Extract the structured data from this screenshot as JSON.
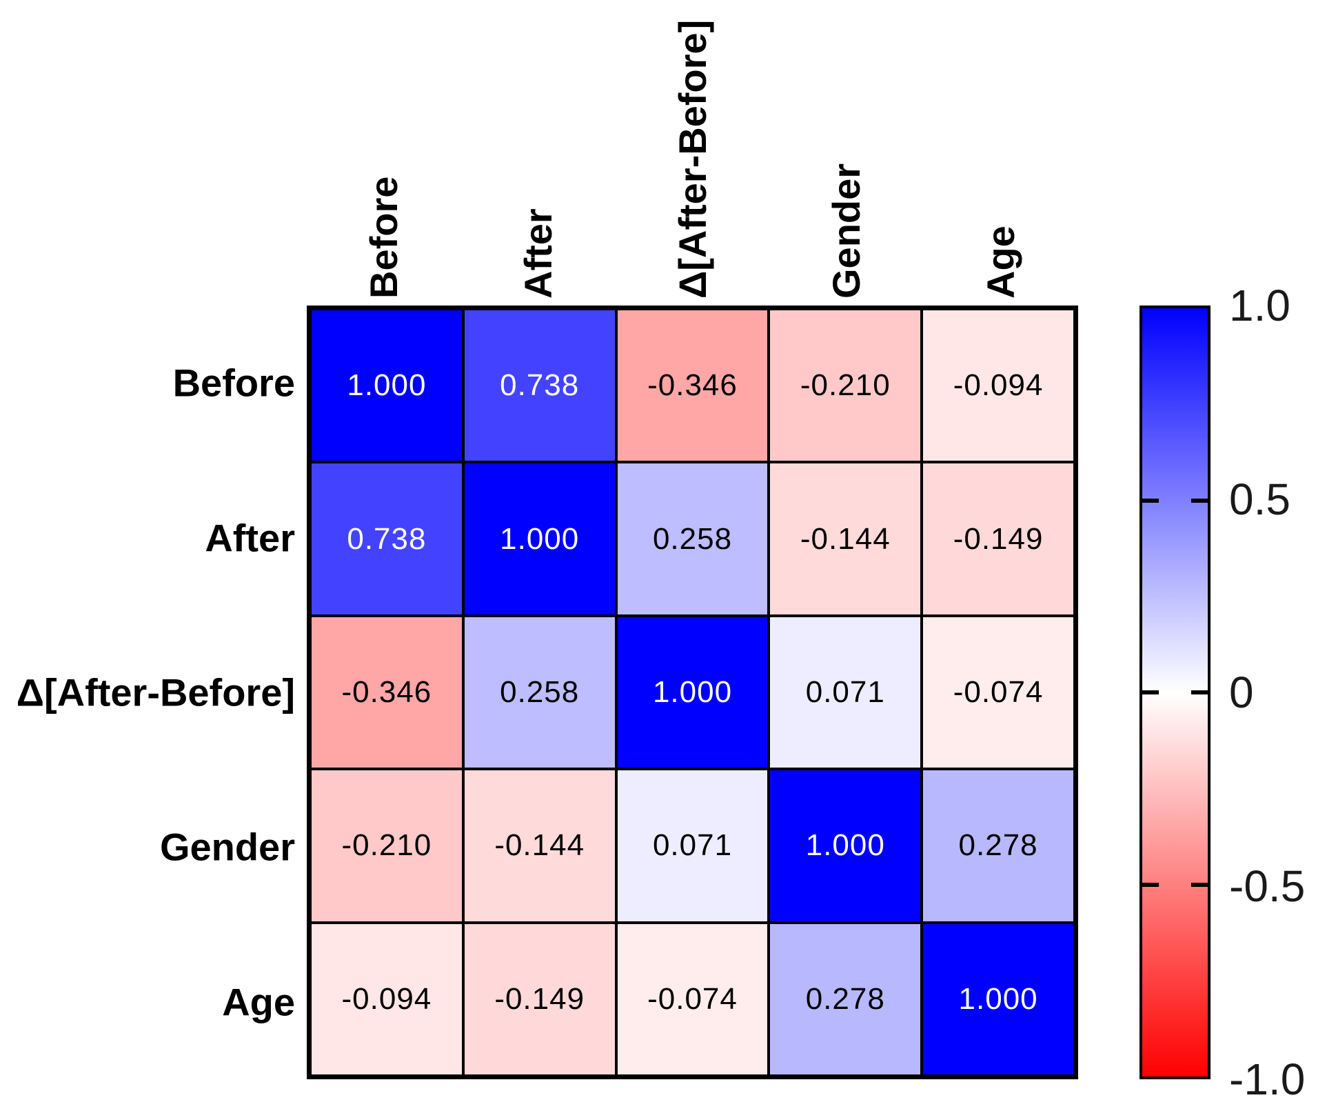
{
  "chart_data": {
    "type": "heatmap",
    "categories": [
      "Before",
      "After",
      "Δ[After-Before]",
      "Gender",
      "Age"
    ],
    "matrix": [
      [
        1.0,
        0.738,
        -0.346,
        -0.21,
        -0.094
      ],
      [
        0.738,
        1.0,
        0.258,
        -0.144,
        -0.149
      ],
      [
        -0.346,
        0.258,
        1.0,
        0.071,
        -0.074
      ],
      [
        -0.21,
        -0.144,
        0.071,
        1.0,
        0.278
      ],
      [
        -0.094,
        -0.149,
        -0.074,
        0.278,
        1.0
      ]
    ],
    "cell_text": [
      [
        "1.000",
        "0.738",
        "-0.346",
        "-0.210",
        "-0.094"
      ],
      [
        "0.738",
        "1.000",
        "0.258",
        "-0.144",
        "-0.149"
      ],
      [
        "-0.346",
        "0.258",
        "1.000",
        "0.071",
        "-0.074"
      ],
      [
        "-0.210",
        "-0.144",
        "0.071",
        "1.000",
        "0.278"
      ],
      [
        "-0.094",
        "-0.149",
        "-0.074",
        "0.278",
        "1.000"
      ]
    ],
    "value_range": [
      -1,
      1
    ],
    "grid": "on",
    "colormap": {
      "positive_color": "#0000ff",
      "zero_color": "#ffffff",
      "negative_color": "#ff0000"
    },
    "colorbar": {
      "position": "right",
      "ticks": [
        {
          "label": "1.0",
          "value": 1.0
        },
        {
          "label": "0.5",
          "value": 0.5
        },
        {
          "label": "0",
          "value": 0.0
        },
        {
          "label": "-0.5",
          "value": -0.5
        },
        {
          "label": "-1.0",
          "value": -1.0
        }
      ]
    }
  }
}
